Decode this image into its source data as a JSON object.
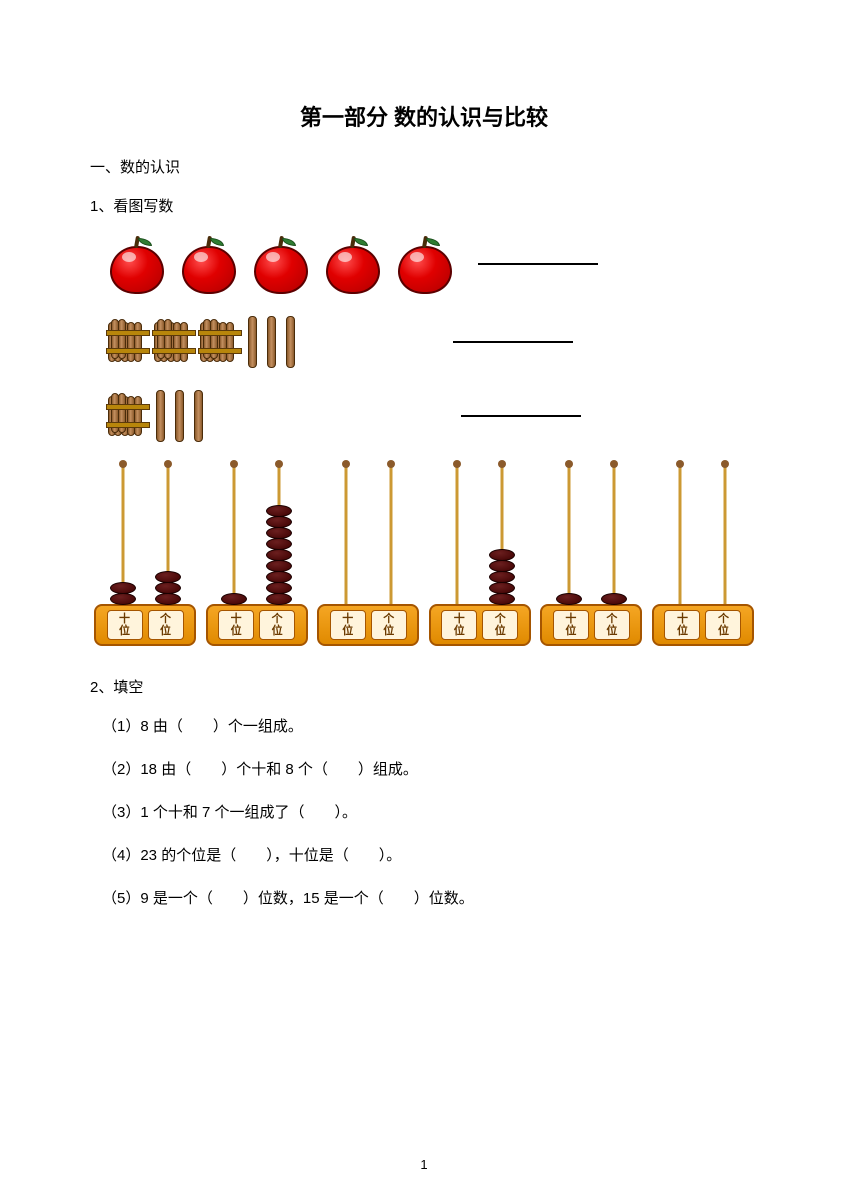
{
  "title": "第一部分 数的认识与比较",
  "section1": {
    "heading": "一、数的认识"
  },
  "q1": {
    "label": "1、看图写数",
    "apples_count": 5,
    "row2": {
      "bundles": 3,
      "sticks": 3
    },
    "row3": {
      "bundles": 1,
      "sticks": 3
    }
  },
  "abacus": {
    "tens_label_top": "十",
    "ones_label_top": "个",
    "label_bottom": "位",
    "items": [
      {
        "tens": 2,
        "ones": 3
      },
      {
        "tens": 1,
        "ones": 9
      },
      {
        "tens": 0,
        "ones": 0
      },
      {
        "tens": 0,
        "ones": 5
      },
      {
        "tens": 1,
        "ones": 1
      },
      {
        "tens": 0,
        "ones": 0
      }
    ]
  },
  "q2": {
    "label": "2、填空",
    "items": [
      "（1）8 由（　　）个一组成。",
      "（2）18 由（　　）个十和 8 个（　　）组成。",
      "（3）1 个十和 7 个一组成了（　　）。",
      "（4）23 的个位是（　　），十位是（　　）。",
      "（5）9 是一个（　　）位数，15 是一个（　　）位数。"
    ]
  },
  "page_number": "1",
  "colors": {
    "apple_fill": "#e00000",
    "stick_fill": "#c49060",
    "bead_fill": "#3d0000",
    "base_fill": "#f5a623"
  }
}
